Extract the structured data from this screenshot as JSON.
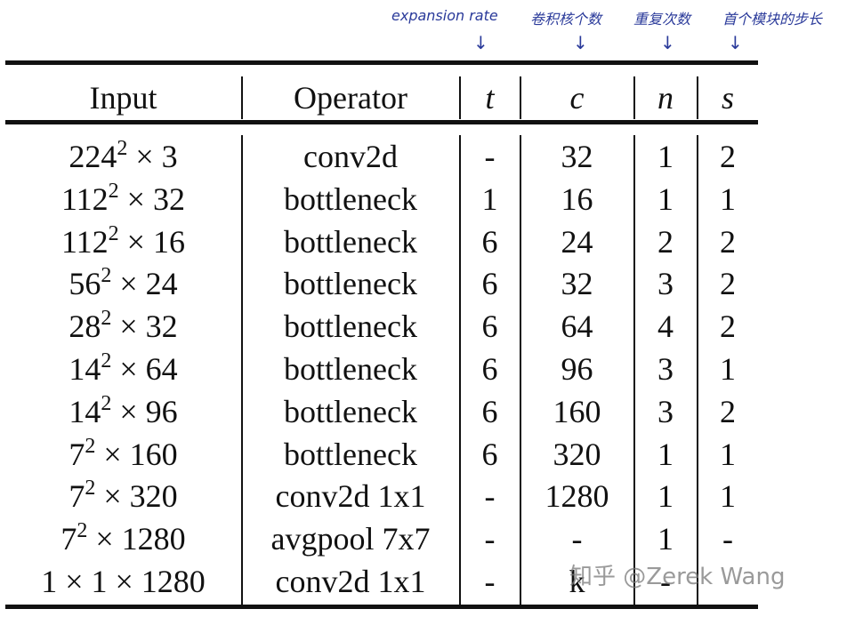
{
  "annotations": [
    {
      "text": "expansion rate"
    },
    {
      "text": "卷积核个数"
    },
    {
      "text": "重复次数"
    },
    {
      "text": "首个模块的步长"
    }
  ],
  "arrow_glyph": "↓",
  "headers": {
    "input": "Input",
    "operator": "Operator",
    "t": "t",
    "c": "c",
    "n": "n",
    "s": "s"
  },
  "rows": [
    {
      "input_base": "224",
      "input_exp": "2",
      "input_rest": " × 3",
      "operator": "conv2d",
      "t": "-",
      "c": "32",
      "n": "1",
      "s": "2"
    },
    {
      "input_base": "112",
      "input_exp": "2",
      "input_rest": " × 32",
      "operator": "bottleneck",
      "t": "1",
      "c": "16",
      "n": "1",
      "s": "1"
    },
    {
      "input_base": "112",
      "input_exp": "2",
      "input_rest": " × 16",
      "operator": "bottleneck",
      "t": "6",
      "c": "24",
      "n": "2",
      "s": "2"
    },
    {
      "input_base": "56",
      "input_exp": "2",
      "input_rest": " × 24",
      "operator": "bottleneck",
      "t": "6",
      "c": "32",
      "n": "3",
      "s": "2"
    },
    {
      "input_base": "28",
      "input_exp": "2",
      "input_rest": " × 32",
      "operator": "bottleneck",
      "t": "6",
      "c": "64",
      "n": "4",
      "s": "2"
    },
    {
      "input_base": "14",
      "input_exp": "2",
      "input_rest": " × 64",
      "operator": "bottleneck",
      "t": "6",
      "c": "96",
      "n": "3",
      "s": "1"
    },
    {
      "input_base": "14",
      "input_exp": "2",
      "input_rest": " × 96",
      "operator": "bottleneck",
      "t": "6",
      "c": "160",
      "n": "3",
      "s": "2"
    },
    {
      "input_base": "7",
      "input_exp": "2",
      "input_rest": " × 160",
      "operator": "bottleneck",
      "t": "6",
      "c": "320",
      "n": "1",
      "s": "1"
    },
    {
      "input_base": "7",
      "input_exp": "2",
      "input_rest": " × 320",
      "operator": "conv2d 1x1",
      "t": "-",
      "c": "1280",
      "n": "1",
      "s": "1"
    },
    {
      "input_base": "7",
      "input_exp": "2",
      "input_rest": " × 1280",
      "operator": "avgpool 7x7",
      "t": "-",
      "c": "-",
      "n": "1",
      "s": "-"
    },
    {
      "input_base": "1 × 1 × 1280",
      "input_exp": "",
      "input_rest": "",
      "operator": "conv2d 1x1",
      "t": "-",
      "c": "k",
      "n": "-",
      "s": ""
    }
  ],
  "watermark": "知乎 @Zerek Wang"
}
